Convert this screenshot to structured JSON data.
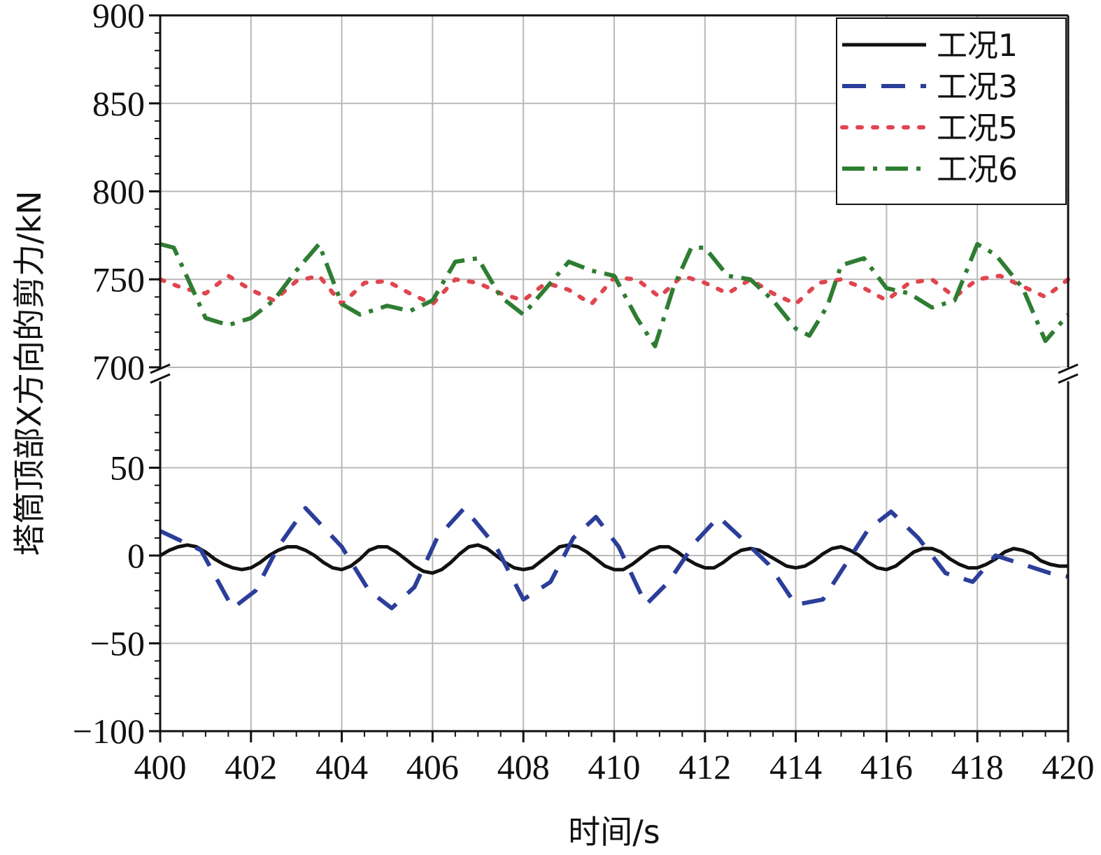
{
  "chart_data": {
    "type": "line",
    "xlabel": "时间/s",
    "ylabel": "塔筒顶部X方向的剪力/kN",
    "xlim": [
      400,
      420
    ],
    "x_ticks": [
      "400",
      "402",
      "404",
      "406",
      "408",
      "410",
      "412",
      "414",
      "416",
      "418",
      "420"
    ],
    "y_axis_broken": true,
    "y_lower_range": [
      -100,
      100
    ],
    "y_upper_range": [
      700,
      900
    ],
    "y_ticks_lower": [
      "−100",
      "−50",
      "0",
      "50"
    ],
    "y_ticks_upper": [
      "700",
      "750",
      "800",
      "850",
      "900"
    ],
    "grid": true,
    "legend_position": "top-right",
    "series": [
      {
        "name": "工况1",
        "style": "solid",
        "color": "#111111",
        "x": [
          400,
          400.2,
          400.4,
          400.6,
          400.8,
          401,
          401.2,
          401.4,
          401.6,
          401.8,
          402,
          402.2,
          402.4,
          402.6,
          402.8,
          403,
          403.2,
          403.4,
          403.6,
          403.8,
          404,
          404.2,
          404.4,
          404.6,
          404.8,
          405,
          405.2,
          405.4,
          405.6,
          405.8,
          406,
          406.2,
          406.4,
          406.6,
          406.8,
          407,
          407.2,
          407.4,
          407.6,
          407.8,
          408,
          408.2,
          408.4,
          408.6,
          408.8,
          409,
          409.2,
          409.4,
          409.6,
          409.8,
          410,
          410.2,
          410.4,
          410.6,
          410.8,
          411,
          411.2,
          411.4,
          411.6,
          411.8,
          412,
          412.2,
          412.4,
          412.6,
          412.8,
          413,
          413.2,
          413.4,
          413.6,
          413.8,
          414,
          414.2,
          414.4,
          414.6,
          414.8,
          415,
          415.2,
          415.4,
          415.6,
          415.8,
          416,
          416.2,
          416.4,
          416.6,
          416.8,
          417,
          417.2,
          417.4,
          417.6,
          417.8,
          418,
          418.2,
          418.4,
          418.6,
          418.8,
          419,
          419.2,
          419.4,
          419.6,
          419.8,
          420
        ],
        "y": [
          0,
          3,
          5,
          6,
          5,
          2,
          -2,
          -5,
          -7,
          -8,
          -7,
          -4,
          0,
          3,
          5,
          5,
          3,
          0,
          -4,
          -7,
          -8,
          -6,
          -2,
          3,
          5,
          5,
          2,
          -2,
          -6,
          -9,
          -10,
          -8,
          -4,
          1,
          5,
          6,
          4,
          0,
          -4,
          -7,
          -8,
          -7,
          -3,
          1,
          5,
          6,
          5,
          2,
          -2,
          -6,
          -8,
          -8,
          -5,
          -1,
          3,
          5,
          5,
          2,
          -2,
          -5,
          -7,
          -7,
          -4,
          0,
          3,
          4,
          3,
          0,
          -3,
          -6,
          -7,
          -6,
          -3,
          1,
          4,
          5,
          3,
          0,
          -4,
          -7,
          -8,
          -6,
          -2,
          2,
          4,
          4,
          2,
          -2,
          -5,
          -7,
          -7,
          -5,
          -2,
          2,
          4,
          3,
          1,
          -3,
          -5,
          -6,
          -6
        ]
      },
      {
        "name": "工况3",
        "style": "dashed",
        "color": "#2b3e9a",
        "x": [
          400,
          400.9,
          401.6,
          402.1,
          402.6,
          403.2,
          404,
          404.6,
          405.1,
          405.6,
          406.1,
          406.7,
          407.4,
          408,
          408.6,
          409.1,
          409.6,
          410.1,
          410.7,
          411.2,
          411.8,
          412.3,
          412.8,
          413.4,
          414,
          414.6,
          415.1,
          415.6,
          416.1,
          416.7,
          417.3,
          417.9,
          418.4,
          419,
          419.6,
          420
        ],
        "y": [
          14,
          3,
          -30,
          -20,
          5,
          27,
          5,
          -20,
          -30,
          -18,
          10,
          27,
          5,
          -25,
          -15,
          10,
          22,
          5,
          -28,
          -15,
          8,
          22,
          10,
          -5,
          -28,
          -25,
          -5,
          15,
          25,
          10,
          -10,
          -15,
          0,
          -5,
          -10,
          -12
        ]
      },
      {
        "name": "工况5",
        "style": "dotted",
        "color": "#e0454f",
        "x": [
          400,
          400.5,
          401,
          401.5,
          402,
          402.5,
          403,
          403.5,
          404,
          404.5,
          405,
          405.5,
          406,
          406.5,
          407,
          407.5,
          408,
          408.5,
          409,
          409.5,
          410,
          410.5,
          411,
          411.5,
          412,
          412.5,
          413,
          413.5,
          414,
          414.5,
          415,
          415.5,
          416,
          416.5,
          417,
          417.5,
          418,
          418.5,
          419,
          419.5,
          420
        ],
        "y": [
          750,
          745,
          742,
          752,
          744,
          738,
          749,
          752,
          736,
          748,
          749,
          742,
          736,
          750,
          748,
          742,
          738,
          748,
          744,
          736,
          751,
          750,
          740,
          752,
          748,
          742,
          750,
          742,
          736,
          748,
          750,
          745,
          738,
          748,
          750,
          740,
          750,
          752,
          746,
          740,
          750
        ]
      },
      {
        "name": "工况6",
        "style": "dashdot",
        "color": "#2f7d32",
        "x": [
          400,
          400.3,
          401,
          401.5,
          402,
          402.5,
          403,
          403.5,
          404,
          404.4,
          405,
          405.5,
          406,
          406.5,
          407,
          407.5,
          408,
          408.5,
          409,
          409.5,
          410,
          410.5,
          410.9,
          411.3,
          411.7,
          412,
          412.5,
          413,
          413.5,
          414,
          414.3,
          414.7,
          415,
          415.5,
          416,
          416.5,
          417,
          417.5,
          418,
          418.4,
          419,
          419.5,
          420
        ],
        "y": [
          770,
          768,
          728,
          724,
          728,
          738,
          755,
          770,
          736,
          730,
          735,
          732,
          738,
          760,
          762,
          740,
          730,
          745,
          760,
          755,
          752,
          728,
          712,
          745,
          768,
          768,
          752,
          750,
          738,
          722,
          718,
          735,
          758,
          762,
          745,
          742,
          734,
          738,
          770,
          764,
          745,
          715,
          730
        ]
      }
    ]
  }
}
